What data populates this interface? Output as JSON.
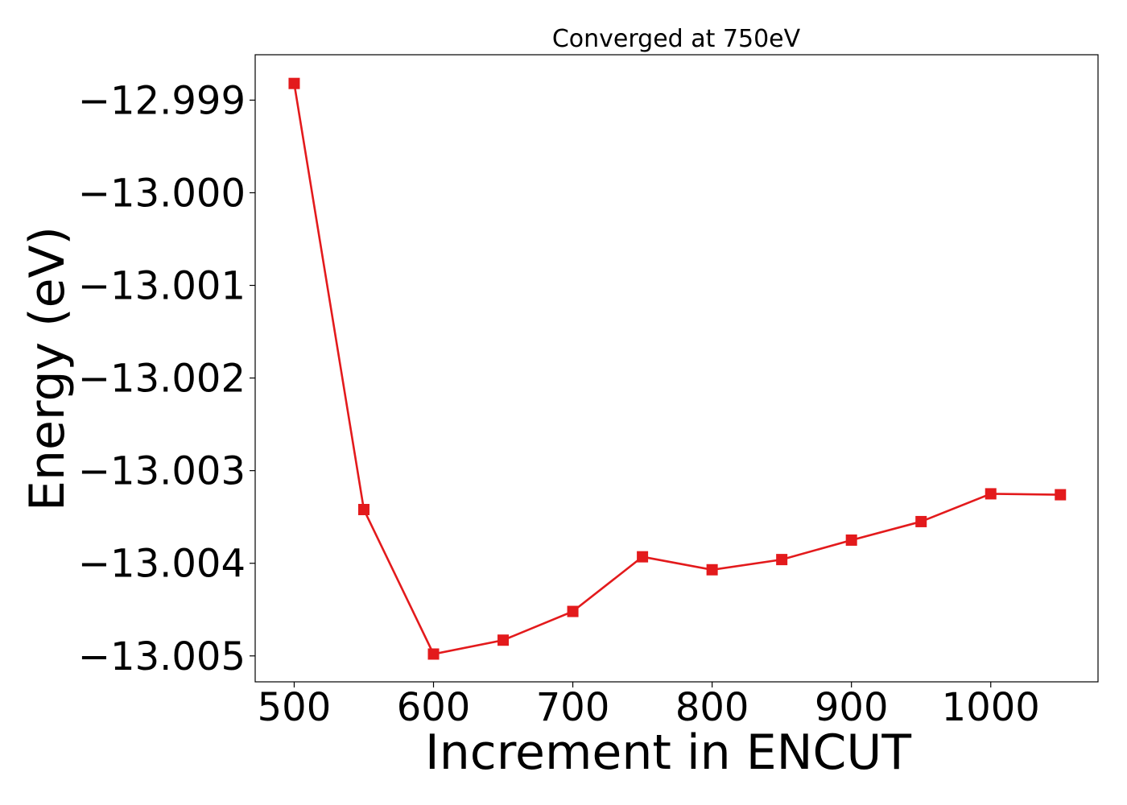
{
  "chart_data": {
    "type": "line",
    "title": "Converged at 750eV",
    "xlabel": "Increment in ENCUT",
    "ylabel": "Energy (eV)",
    "x": [
      500,
      550,
      600,
      650,
      700,
      750,
      800,
      850,
      900,
      950,
      1000,
      1050
    ],
    "series": [
      {
        "values": [
          -12.99882,
          -13.00342,
          -13.00498,
          -13.00483,
          -13.00452,
          -13.00393,
          -13.00407,
          -13.00396,
          -13.00375,
          -13.00355,
          -13.00325,
          -13.00326
        ]
      }
    ],
    "xlim": [
      472,
      1077
    ],
    "ylim": [
      -13.00528,
      -12.99851
    ],
    "xticks": [
      500,
      600,
      700,
      800,
      900,
      1000
    ],
    "xtick_labels": [
      "500",
      "600",
      "700",
      "800",
      "900",
      "1000"
    ],
    "yticks": [
      -12.999,
      -13.0,
      -13.001,
      -13.002,
      -13.003,
      -13.004,
      -13.005
    ],
    "ytick_labels": [
      "−12.999",
      "−13.000",
      "−13.001",
      "−13.002",
      "−13.003",
      "−13.004",
      "−13.005"
    ],
    "grid": false,
    "line_color": "#e31a1c",
    "marker": "square"
  }
}
